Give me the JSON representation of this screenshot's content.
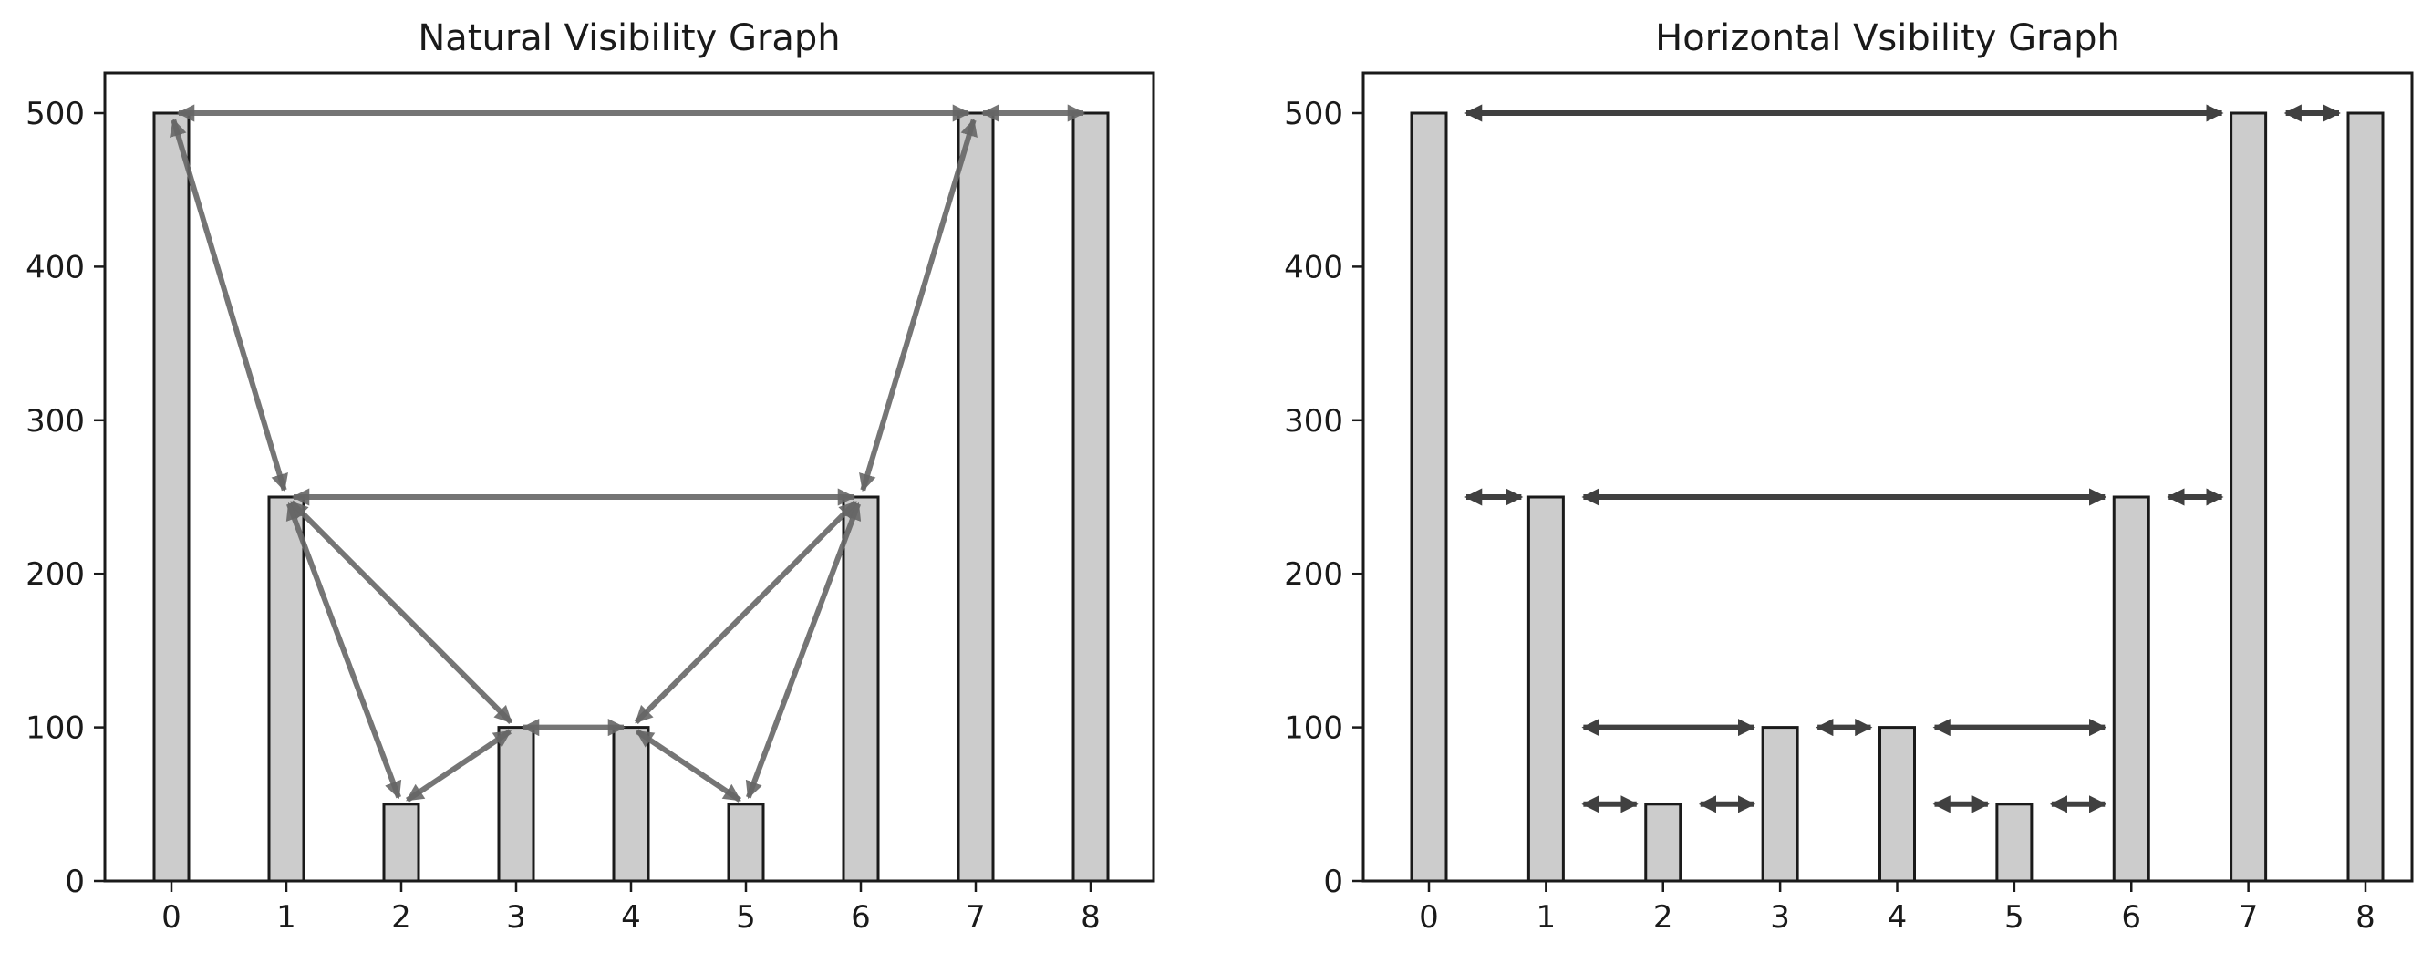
{
  "chart_data": [
    {
      "type": "bar",
      "title": "Natural Visibility Graph",
      "categories": [
        "0",
        "1",
        "2",
        "3",
        "4",
        "5",
        "6",
        "7",
        "8"
      ],
      "values": [
        500,
        250,
        50,
        100,
        100,
        50,
        250,
        500,
        500
      ],
      "xlabel": "",
      "ylabel": "",
      "ylim": [
        0,
        500
      ],
      "yticks": [
        "0",
        "100",
        "200",
        "300",
        "400",
        "500"
      ],
      "grid": false,
      "bar_color": "#cccccc",
      "edge_color": "#1a1a1a",
      "edge_style": "top-to-top",
      "edge_color_arrow": "#666666",
      "edges": [
        [
          0,
          1
        ],
        [
          0,
          7
        ],
        [
          1,
          2
        ],
        [
          1,
          3
        ],
        [
          1,
          6
        ],
        [
          2,
          3
        ],
        [
          3,
          4
        ],
        [
          4,
          5
        ],
        [
          4,
          6
        ],
        [
          5,
          6
        ],
        [
          6,
          7
        ],
        [
          7,
          8
        ]
      ]
    },
    {
      "type": "bar",
      "title": "Horizontal Vsibility Graph",
      "categories": [
        "0",
        "1",
        "2",
        "3",
        "4",
        "5",
        "6",
        "7",
        "8"
      ],
      "values": [
        500,
        250,
        50,
        100,
        100,
        50,
        250,
        500,
        500
      ],
      "xlabel": "",
      "ylabel": "",
      "ylim": [
        0,
        500
      ],
      "yticks": [
        "0",
        "100",
        "200",
        "300",
        "400",
        "500"
      ],
      "grid": false,
      "bar_color": "#cccccc",
      "edge_color": "#1a1a1a",
      "edge_style": "horizontal",
      "edge_color_arrow": "#404040",
      "edges": [
        [
          0,
          1
        ],
        [
          0,
          7
        ],
        [
          1,
          2
        ],
        [
          1,
          3
        ],
        [
          1,
          6
        ],
        [
          2,
          3
        ],
        [
          3,
          4
        ],
        [
          4,
          5
        ],
        [
          4,
          6
        ],
        [
          5,
          6
        ],
        [
          6,
          7
        ],
        [
          7,
          8
        ]
      ]
    }
  ]
}
